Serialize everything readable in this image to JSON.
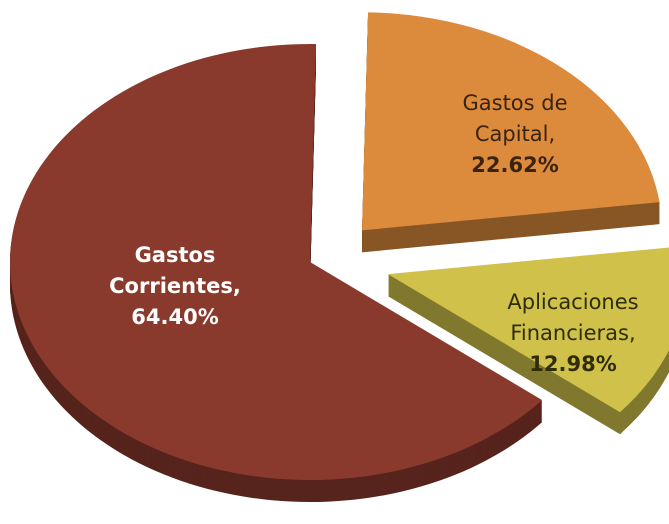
{
  "chart_data": {
    "type": "pie",
    "categories": [
      "Gastos de Capital,",
      "Aplicaciones Financieras,",
      "Gastos Corrientes,"
    ],
    "values": [
      22.62,
      12.98,
      64.4
    ],
    "value_labels": [
      "22.62%",
      "12.98%",
      "64.40%"
    ],
    "colors": [
      "#dc8a3b",
      "#cfc14a",
      "#8a3a2d"
    ]
  }
}
